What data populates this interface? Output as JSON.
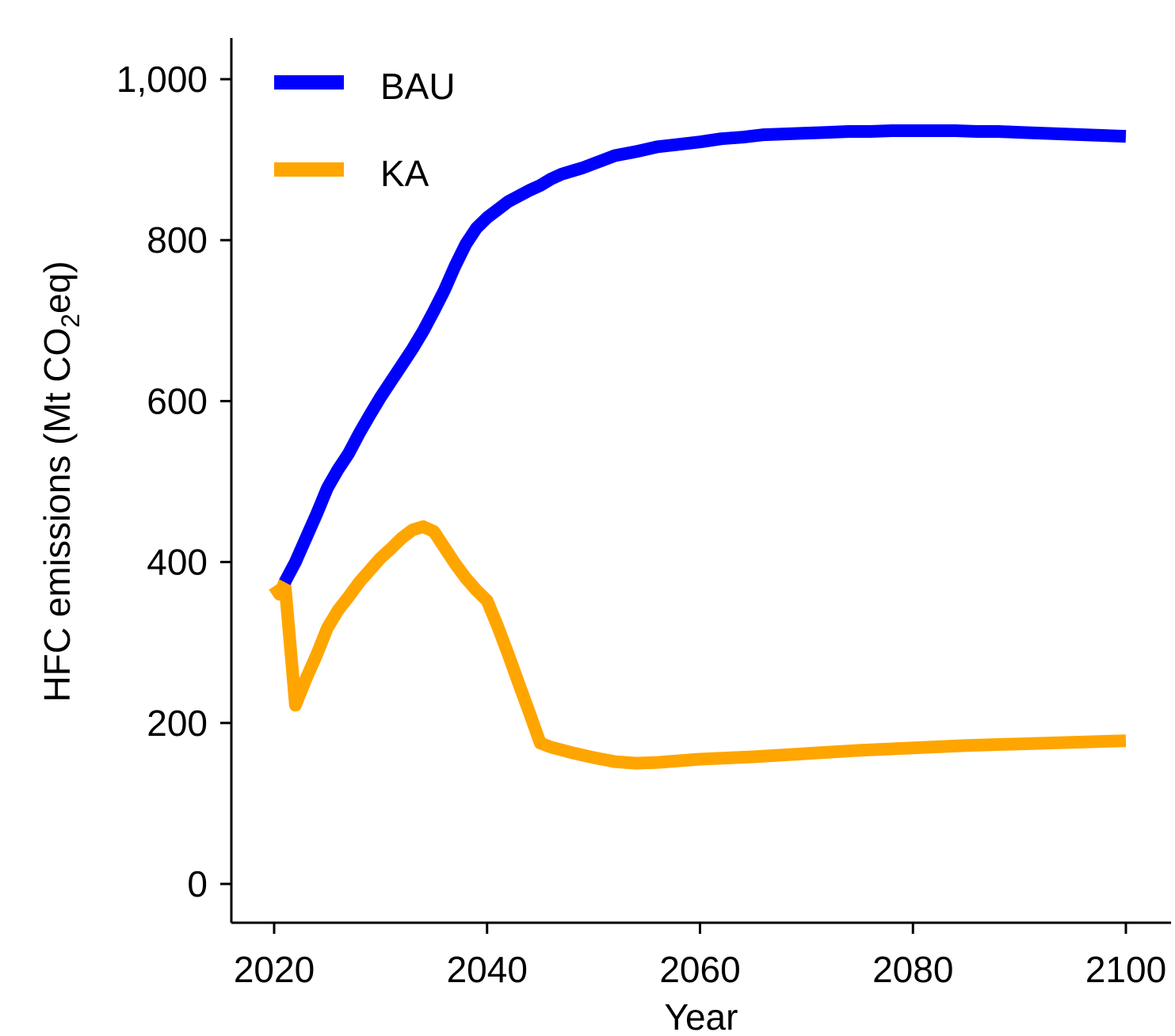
{
  "chart_data": {
    "type": "line",
    "xlabel": "Year",
    "ylabel": "HFC emissions (Mt CO2eq)",
    "ylabel_parts": {
      "main": "HFC emissions (Mt CO",
      "sub": "2",
      "tail": "eq)"
    },
    "xlim": [
      2016,
      2104
    ],
    "ylim": [
      -50,
      1050
    ],
    "x_ticks": [
      2020,
      2040,
      2060,
      2080,
      2100
    ],
    "x_tick_labels": [
      "2020",
      "2040",
      "2060",
      "2080",
      "2100"
    ],
    "y_ticks": [
      0,
      200,
      400,
      600,
      800,
      1000
    ],
    "y_tick_labels": [
      "0",
      "200",
      "400",
      "600",
      "800",
      "1,000"
    ],
    "grid": false,
    "legend": "top-left",
    "series": [
      {
        "name": "BAU",
        "color": "#0000FF",
        "x": [
          2021,
          2022,
          2023,
          2024,
          2025,
          2026,
          2027,
          2028,
          2029,
          2030,
          2031,
          2032,
          2033,
          2034,
          2035,
          2036,
          2037,
          2038,
          2039,
          2040,
          2041,
          2042,
          2043,
          2044,
          2045,
          2046,
          2047,
          2048,
          2049,
          2050,
          2052,
          2054,
          2056,
          2058,
          2060,
          2062,
          2064,
          2066,
          2068,
          2070,
          2072,
          2074,
          2076,
          2078,
          2080,
          2082,
          2084,
          2086,
          2088,
          2090,
          2092,
          2094,
          2096,
          2098,
          2100
        ],
        "values": [
          375,
          400,
          430,
          460,
          492,
          515,
          535,
          560,
          583,
          605,
          625,
          645,
          665,
          687,
          712,
          738,
          768,
          795,
          815,
          828,
          838,
          848,
          855,
          862,
          868,
          876,
          882,
          886,
          890,
          895,
          905,
          910,
          916,
          919,
          922,
          926,
          928,
          931,
          932,
          933,
          934,
          935,
          935,
          936,
          936,
          936,
          936,
          935,
          935,
          934,
          933,
          932,
          931,
          930,
          929
        ]
      },
      {
        "name": "KA",
        "color": "#FFA500",
        "x": [
          2020,
          2020.5,
          2021,
          2022,
          2023,
          2024,
          2025,
          2026,
          2027,
          2028,
          2029,
          2030,
          2031,
          2032,
          2033,
          2034,
          2035,
          2036,
          2037,
          2038,
          2039,
          2040,
          2041,
          2042,
          2043,
          2044,
          2045,
          2046,
          2048,
          2050,
          2052,
          2054,
          2056,
          2060,
          2065,
          2070,
          2075,
          2080,
          2085,
          2090,
          2095,
          2100
        ],
        "values": [
          370,
          360,
          375,
          222,
          255,
          285,
          318,
          340,
          357,
          375,
          390,
          405,
          417,
          430,
          440,
          444,
          438,
          418,
          398,
          380,
          365,
          352,
          320,
          285,
          248,
          212,
          175,
          170,
          163,
          157,
          152,
          150,
          151,
          155,
          158,
          162,
          166,
          169,
          172,
          174,
          176,
          178
        ]
      }
    ]
  }
}
